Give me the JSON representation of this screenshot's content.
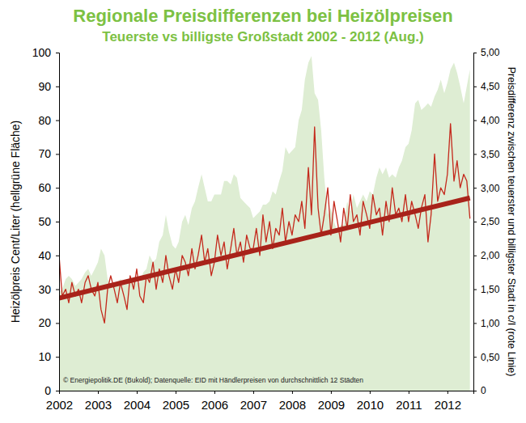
{
  "chart_data": {
    "type": "line",
    "title": "Regionale Preisdifferenzen bei Heizölpreisen",
    "subtitle": "Teuerste vs billigste Großstadt 2002 - 2012 (Aug.)",
    "y_label": "Heizölpreis Cent/Liter (hellgrüne Fläche)",
    "y2_label": "Preisdifferenz zwischen teuerster und billigster Stadt in c/l (rote Linie)",
    "annotation": "© Energiepolitik.DE (Bukold); Datenquelle: EID mit Händlerpreisen von durchschnittlich 12 Städten",
    "grid": false,
    "x": [
      2002,
      2002.08,
      2002.17,
      2002.25,
      2002.33,
      2002.42,
      2002.5,
      2002.58,
      2002.67,
      2002.75,
      2002.83,
      2002.92,
      2003,
      2003.08,
      2003.17,
      2003.25,
      2003.33,
      2003.42,
      2003.5,
      2003.58,
      2003.67,
      2003.75,
      2003.83,
      2003.92,
      2004,
      2004.08,
      2004.17,
      2004.25,
      2004.33,
      2004.42,
      2004.5,
      2004.58,
      2004.67,
      2004.75,
      2004.83,
      2004.92,
      2005,
      2005.08,
      2005.17,
      2005.25,
      2005.33,
      2005.42,
      2005.5,
      2005.58,
      2005.67,
      2005.75,
      2005.83,
      2005.92,
      2006,
      2006.08,
      2006.17,
      2006.25,
      2006.33,
      2006.42,
      2006.5,
      2006.58,
      2006.67,
      2006.75,
      2006.83,
      2006.92,
      2007,
      2007.08,
      2007.17,
      2007.25,
      2007.33,
      2007.42,
      2007.5,
      2007.58,
      2007.67,
      2007.75,
      2007.83,
      2007.92,
      2008,
      2008.08,
      2008.17,
      2008.25,
      2008.33,
      2008.42,
      2008.5,
      2008.58,
      2008.67,
      2008.75,
      2008.83,
      2008.92,
      2009,
      2009.08,
      2009.17,
      2009.25,
      2009.33,
      2009.42,
      2009.5,
      2009.58,
      2009.67,
      2009.75,
      2009.83,
      2009.92,
      2010,
      2010.08,
      2010.17,
      2010.25,
      2010.33,
      2010.42,
      2010.5,
      2010.58,
      2010.67,
      2010.75,
      2010.83,
      2010.92,
      2011,
      2011.08,
      2011.17,
      2011.25,
      2011.33,
      2011.42,
      2011.5,
      2011.58,
      2011.67,
      2011.75,
      2011.83,
      2011.92,
      2012,
      2012.08,
      2012.17,
      2012.25,
      2012.33,
      2012.42,
      2012.5,
      2012.58
    ],
    "xlim": [
      2002,
      2012.67
    ],
    "xticks": [
      2002,
      2003,
      2004,
      2005,
      2006,
      2007,
      2008,
      2009,
      2010,
      2011,
      2012
    ],
    "ylim": [
      0,
      100
    ],
    "yticks": [
      0,
      10,
      20,
      30,
      40,
      50,
      60,
      70,
      80,
      90,
      100
    ],
    "y2lim": [
      0,
      5
    ],
    "y2ticks": [
      0,
      {
        "value": 0.5,
        "label": "0,50"
      },
      {
        "value": 1,
        "label": "1,00"
      },
      {
        "value": 1.5,
        "label": "1,50"
      },
      {
        "value": 2,
        "label": "2,00"
      },
      {
        "value": 2.5,
        "label": "2,50"
      },
      {
        "value": 3,
        "label": "3,00"
      },
      {
        "value": 3.5,
        "label": "3,50"
      },
      {
        "value": 4,
        "label": "4,00"
      },
      {
        "value": 4.5,
        "label": "4,50"
      },
      {
        "value": 5,
        "label": "5,00"
      }
    ],
    "series": [
      {
        "type": "area",
        "color": "#deedd3",
        "values": [
          29,
          30,
          33,
          34,
          33,
          31,
          32,
          33,
          35,
          36,
          34,
          36,
          38,
          42,
          40,
          33,
          31,
          31,
          32,
          33,
          32,
          32,
          32,
          33,
          32,
          32,
          35,
          36,
          40,
          38,
          39,
          44,
          46,
          52,
          47,
          43,
          42,
          44,
          50,
          52,
          49,
          54,
          56,
          60,
          64,
          60,
          56,
          56,
          58,
          58,
          58,
          62,
          62,
          61,
          64,
          63,
          57,
          56,
          55,
          54,
          51,
          52,
          53,
          55,
          55,
          56,
          59,
          58,
          62,
          65,
          72,
          70,
          71,
          72,
          80,
          83,
          92,
          97,
          99,
          88,
          86,
          77,
          63,
          52,
          54,
          50,
          47,
          49,
          49,
          56,
          53,
          58,
          54,
          56,
          58,
          56,
          59,
          58,
          63,
          66,
          64,
          66,
          63,
          64,
          63,
          66,
          68,
          72,
          73,
          77,
          85,
          86,
          83,
          84,
          85,
          84,
          87,
          89,
          92,
          88,
          91,
          95,
          97,
          94,
          90,
          85,
          90,
          95
        ]
      },
      {
        "type": "line",
        "color": "#c4291c",
        "axis": "y2",
        "line_style": "solid",
        "values": [
          2.0,
          1.4,
          1.5,
          1.3,
          1.6,
          1.4,
          1.5,
          1.3,
          1.6,
          1.7,
          1.5,
          1.4,
          1.6,
          1.2,
          1.0,
          1.5,
          1.7,
          1.5,
          1.3,
          1.6,
          1.4,
          1.2,
          1.7,
          1.5,
          1.8,
          1.4,
          1.3,
          1.7,
          1.6,
          1.9,
          1.5,
          1.8,
          1.6,
          2.0,
          1.7,
          1.5,
          1.8,
          1.6,
          2.0,
          1.9,
          1.7,
          2.1,
          1.8,
          2.0,
          2.3,
          1.9,
          2.1,
          1.7,
          1.9,
          2.3,
          2.0,
          2.2,
          1.8,
          2.1,
          2.4,
          2.0,
          2.2,
          1.9,
          2.3,
          2.1,
          2.1,
          2.4,
          2.0,
          2.6,
          2.2,
          2.5,
          2.1,
          2.4,
          2.3,
          2.7,
          2.2,
          2.5,
          2.3,
          2.6,
          2.5,
          2.8,
          2.4,
          3.3,
          2.6,
          3.9,
          2.7,
          2.3,
          2.6,
          3.0,
          2.3,
          2.8,
          2.5,
          2.2,
          2.7,
          2.4,
          2.9,
          2.5,
          2.6,
          2.3,
          2.8,
          2.6,
          2.4,
          2.9,
          2.6,
          2.7,
          2.3,
          2.8,
          2.5,
          3.0,
          2.6,
          2.7,
          2.5,
          2.9,
          2.5,
          2.8,
          2.6,
          2.4,
          2.7,
          2.9,
          2.2,
          2.6,
          3.5,
          2.8,
          3.0,
          2.9,
          3.2,
          3.95,
          3.1,
          3.4,
          3.0,
          3.2,
          3.1,
          2.55
        ]
      },
      {
        "type": "line",
        "color": "#a8231a",
        "axis": "y2",
        "line_style": "bold",
        "x": [
          2002,
          2012.58
        ],
        "values": [
          1.37,
          2.85
        ]
      }
    ]
  }
}
